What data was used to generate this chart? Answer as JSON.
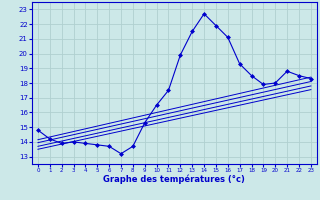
{
  "xlabel": "Graphe des températures (°c)",
  "bg_color": "#cce8e8",
  "grid_color": "#b0d0d0",
  "line_color": "#0000cc",
  "xlim": [
    -0.5,
    23.5
  ],
  "ylim": [
    12.5,
    23.5
  ],
  "xticks": [
    0,
    1,
    2,
    3,
    4,
    5,
    6,
    7,
    8,
    9,
    10,
    11,
    12,
    13,
    14,
    15,
    16,
    17,
    18,
    19,
    20,
    21,
    22,
    23
  ],
  "yticks": [
    13,
    14,
    15,
    16,
    17,
    18,
    19,
    20,
    21,
    22,
    23
  ],
  "hours": [
    0,
    1,
    2,
    3,
    4,
    5,
    6,
    7,
    8,
    9,
    10,
    11,
    12,
    13,
    14,
    15,
    16,
    17,
    18,
    19,
    20,
    21,
    22,
    23
  ],
  "temp_main": [
    14.8,
    14.2,
    13.9,
    14.0,
    13.9,
    13.8,
    13.7,
    13.2,
    13.7,
    15.3,
    16.5,
    17.5,
    19.9,
    21.5,
    22.7,
    21.9,
    21.1,
    19.3,
    18.5,
    17.9,
    18.0,
    18.8,
    18.5,
    18.3
  ],
  "trends": [
    [
      [
        0,
        14.15
      ],
      [
        23,
        18.4
      ]
    ],
    [
      [
        0,
        13.95
      ],
      [
        23,
        18.1
      ]
    ],
    [
      [
        0,
        13.7
      ],
      [
        23,
        17.8
      ]
    ],
    [
      [
        0,
        13.5
      ],
      [
        23,
        17.55
      ]
    ]
  ]
}
